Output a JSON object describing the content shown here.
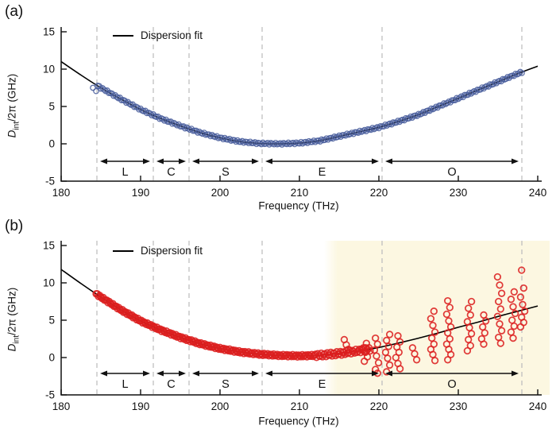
{
  "figure": {
    "panel_a_label": "(a)",
    "panel_b_label": "(b)",
    "legend_label": "Dispersion fit",
    "xlabel": "Frequency (THz)",
    "ylabel": {
      "d": "D",
      "sub": "int",
      "rest": "/2π (GHz)"
    }
  },
  "colors": {
    "panel_a_marker": "#4a5f9d",
    "panel_b_marker": "#dc1f1f",
    "fit_line": "#000000",
    "band_dash": "#bfbfbf",
    "shaded_region": "#fcf7e1",
    "text": "#111111"
  },
  "chart_data": [
    {
      "type": "scatter",
      "panel": "a",
      "series_name": "resonator modes (blue open circles)",
      "marker": "open-circle",
      "marker_color": "#4a5f9d",
      "xlabel": "Frequency (THz)",
      "ylabel": "D_int/2pi (GHz)",
      "xlim": [
        180,
        240
      ],
      "ylim": [
        -5,
        15
      ],
      "xticks": [
        180,
        190,
        200,
        210,
        220,
        230,
        240
      ],
      "yticks": [
        -5,
        0,
        5,
        10,
        15
      ],
      "legend": [
        {
          "label": "Dispersion fit",
          "style": "solid-line",
          "color": "#000000"
        }
      ],
      "telecom_bands": {
        "boundaries_THz": [
          184.5,
          191.6,
          196.1,
          205.3,
          220.4,
          238.0
        ],
        "labels": [
          "L",
          "C",
          "S",
          "E",
          "O"
        ]
      },
      "fit_curve": {
        "x": [
          180,
          182.5,
          185,
          187.5,
          190,
          192.5,
          195,
          197.5,
          200,
          202.5,
          205,
          207.5,
          210,
          212.5,
          215,
          217.5,
          220,
          222.5,
          225,
          227.5,
          230,
          232.5,
          235,
          237.5,
          240
        ],
        "y": [
          11.0,
          9.2,
          7.5,
          6.0,
          4.6,
          3.4,
          2.4,
          1.5,
          0.8,
          0.3,
          0.05,
          0.0,
          0.1,
          0.4,
          1.0,
          1.6,
          2.2,
          3.0,
          3.9,
          5.0,
          6.1,
          7.2,
          8.3,
          9.4,
          10.4
        ]
      },
      "data_band": {
        "x_start": 184.6,
        "x_end": 238.0,
        "spacing_THz": 0.2,
        "follows": "fit_curve",
        "jitter_GHz": 0.12
      },
      "leading_points": [
        [
          184.0,
          7.5
        ],
        [
          184.4,
          7.05
        ]
      ],
      "scatter_clusters": []
    },
    {
      "type": "scatter",
      "panel": "b",
      "series_name": "resonator modes with avoided mode crossings (red open circles)",
      "marker": "open-circle",
      "marker_color": "#dc1f1f",
      "xlabel": "Frequency (THz)",
      "ylabel": "D_int/2pi (GHz)",
      "xlim": [
        180,
        240
      ],
      "ylim": [
        -5,
        15
      ],
      "xticks": [
        180,
        190,
        200,
        210,
        220,
        230,
        240
      ],
      "yticks": [
        -5,
        0,
        5,
        10,
        15
      ],
      "legend": [
        {
          "label": "Dispersion fit",
          "style": "solid-line",
          "color": "#000000"
        }
      ],
      "telecom_bands": {
        "boundaries_THz": [
          184.5,
          191.6,
          196.1,
          205.3,
          220.4,
          238.0
        ],
        "labels": [
          "L",
          "C",
          "S",
          "E",
          "O"
        ]
      },
      "shaded_region": {
        "x_start": 214.5,
        "x_end": 241.5,
        "color": "#fcf7e1",
        "soft_left_edge": true
      },
      "fit_curve": {
        "x": [
          180,
          182.5,
          185,
          187.5,
          190,
          192.5,
          195,
          197.5,
          200,
          202.5,
          205,
          207.5,
          210,
          212.5,
          215,
          217.5,
          220,
          222.5,
          225,
          227.5,
          230,
          232.5,
          235,
          237.5,
          240
        ],
        "y": [
          11.8,
          9.9,
          8.1,
          6.4,
          4.9,
          3.7,
          2.7,
          1.85,
          1.2,
          0.75,
          0.45,
          0.28,
          0.22,
          0.3,
          0.55,
          0.9,
          1.35,
          1.95,
          2.6,
          3.3,
          4.05,
          4.75,
          5.5,
          6.2,
          6.9
        ]
      },
      "data_band": {
        "x_start": 184.4,
        "x_end": 219.0,
        "spacing_THz": 0.15,
        "follows": "fit_curve",
        "jitter_GHz": 0.15
      },
      "leading_points": [],
      "scatter_clusters": [
        {
          "f": 215.9,
          "values": [
            2.4,
            1.7,
            1.1
          ]
        },
        {
          "f": 218.3,
          "values": [
            1.9,
            1.3,
            0.7,
            0.1,
            -0.5
          ]
        },
        {
          "f": 219.7,
          "values": [
            2.6,
            1.8,
            1.0,
            0.2,
            -0.7,
            -1.6,
            -2.1
          ]
        },
        {
          "f": 221.1,
          "values": [
            3.1,
            2.3,
            1.5,
            0.7,
            -0.1,
            -1.0,
            -1.9
          ]
        },
        {
          "f": 222.4,
          "values": [
            2.9,
            2.1,
            1.4,
            0.7,
            0.0,
            -0.8,
            -1.5
          ]
        },
        {
          "f": 224.5,
          "values": [
            1.3,
            0.5,
            -0.3
          ]
        },
        {
          "f": 226.8,
          "values": [
            6.2,
            5.2,
            4.3,
            3.4,
            2.6,
            1.8,
            1.1,
            0.4,
            -0.4
          ]
        },
        {
          "f": 228.8,
          "values": [
            7.6,
            6.7,
            5.8,
            4.9,
            4.1,
            3.3,
            2.5,
            1.8,
            1.1,
            0.4,
            -0.3
          ]
        },
        {
          "f": 231.4,
          "values": [
            7.5,
            6.6,
            5.7,
            4.8,
            4.0,
            3.2,
            2.4,
            1.6,
            0.9
          ]
        },
        {
          "f": 233.2,
          "values": [
            5.7,
            4.9,
            4.1,
            3.3,
            2.5,
            1.8
          ]
        },
        {
          "f": 235.2,
          "values": [
            10.8,
            9.7,
            8.6,
            7.5,
            6.5,
            5.5,
            4.5,
            3.6,
            2.7,
            1.9
          ]
        },
        {
          "f": 236.9,
          "values": [
            8.8,
            7.8,
            6.8,
            5.9,
            5.0,
            4.2,
            3.4,
            2.6
          ]
        },
        {
          "f": 238.1,
          "values": [
            11.7,
            9.3,
            8.1,
            7.1,
            6.2,
            5.4,
            4.7,
            4.1
          ]
        }
      ]
    }
  ]
}
